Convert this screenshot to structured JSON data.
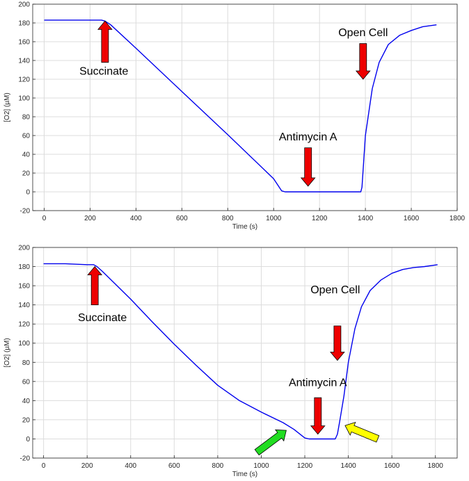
{
  "colors": {
    "line": "#0000ee",
    "arrow_red": "#ee0000",
    "arrow_green": "#22dd22",
    "arrow_yellow": "#ffff00"
  },
  "chart_data": [
    {
      "type": "line",
      "xlabel": "Time (s)",
      "ylabel": "[O2] (µM)",
      "xlim": [
        -50,
        1800
      ],
      "ylim": [
        -20,
        200
      ],
      "xticks": [
        0,
        200,
        400,
        600,
        800,
        1000,
        1200,
        1400,
        1600,
        1800
      ],
      "yticks": [
        -20,
        0,
        20,
        40,
        60,
        80,
        100,
        120,
        140,
        160,
        180,
        200
      ],
      "grid": true,
      "series": [
        {
          "color": "#0000ee",
          "x": [
            0,
            100,
            200,
            250,
            265,
            290,
            400,
            600,
            800,
            1000,
            1035,
            1050,
            1200,
            1380,
            1385,
            1400,
            1430,
            1460,
            1500,
            1550,
            1600,
            1650,
            1710
          ],
          "y": [
            183,
            183,
            183,
            183,
            182,
            178,
            153,
            107,
            61,
            14,
            1,
            0,
            0,
            0,
            5,
            60,
            110,
            138,
            157,
            167,
            172,
            176,
            178
          ]
        }
      ],
      "annotations": [
        {
          "text": "Succinate",
          "arrow": "up",
          "color": "red",
          "x": 265,
          "y_tip": 182,
          "y_tail": 138,
          "label_x": 260,
          "label_y": 125
        },
        {
          "text": "Antimycin A",
          "arrow": "down",
          "color": "red",
          "x": 1150,
          "y_tail": 47,
          "y_tip": 6,
          "label_x": 1150,
          "label_y": 55
        },
        {
          "text": "Open Cell",
          "arrow": "down",
          "color": "red",
          "x": 1390,
          "y_tail": 158,
          "y_tip": 120,
          "label_x": 1390,
          "label_y": 166
        }
      ]
    },
    {
      "type": "line",
      "xlabel": "Time (s)",
      "ylabel": "[O2] (µM)",
      "xlim": [
        -50,
        1900
      ],
      "ylim": [
        -20,
        200
      ],
      "xticks": [
        0,
        200,
        400,
        600,
        800,
        1000,
        1200,
        1400,
        1600,
        1800
      ],
      "yticks": [
        -20,
        0,
        20,
        40,
        60,
        80,
        100,
        120,
        140,
        160,
        180,
        200
      ],
      "grid": true,
      "series": [
        {
          "color": "#0000ee",
          "x": [
            0,
            100,
            200,
            230,
            245,
            270,
            400,
            500,
            600,
            700,
            800,
            900,
            1000,
            1100,
            1150,
            1200,
            1220,
            1300,
            1340,
            1350,
            1360,
            1380,
            1400,
            1430,
            1460,
            1500,
            1550,
            1600,
            1650,
            1700,
            1750,
            1810
          ],
          "y": [
            183,
            183,
            182,
            182,
            180,
            175,
            146,
            122,
            99,
            77,
            56,
            40,
            28,
            17,
            10,
            1,
            0,
            0,
            0,
            5,
            18,
            45,
            80,
            115,
            138,
            155,
            166,
            173,
            177,
            179,
            180,
            182
          ]
        }
      ],
      "annotations": [
        {
          "text": "Succinate",
          "arrow": "up",
          "color": "red",
          "x": 235,
          "y_tip": 180,
          "y_tail": 140,
          "label_x": 270,
          "label_y": 123
        },
        {
          "text": "Antimycin A",
          "arrow": "down",
          "color": "red",
          "x": 1260,
          "y_tail": 43,
          "y_tip": 5,
          "label_x": 1260,
          "label_y": 55
        },
        {
          "text": "Open Cell",
          "arrow": "down",
          "color": "red",
          "x": 1350,
          "y_tail": 118,
          "y_tip": 82,
          "label_x": 1340,
          "label_y": 152
        },
        {
          "text": "",
          "arrow": "diag-up-right",
          "color": "green",
          "x_tail": 980,
          "y_tail": -14,
          "x_tip": 1115,
          "y_tip": 9
        },
        {
          "text": "",
          "arrow": "diag-up-left",
          "color": "yellow",
          "x_tail": 1535,
          "y_tail": 0,
          "x_tip": 1385,
          "y_tip": 14
        }
      ]
    }
  ]
}
